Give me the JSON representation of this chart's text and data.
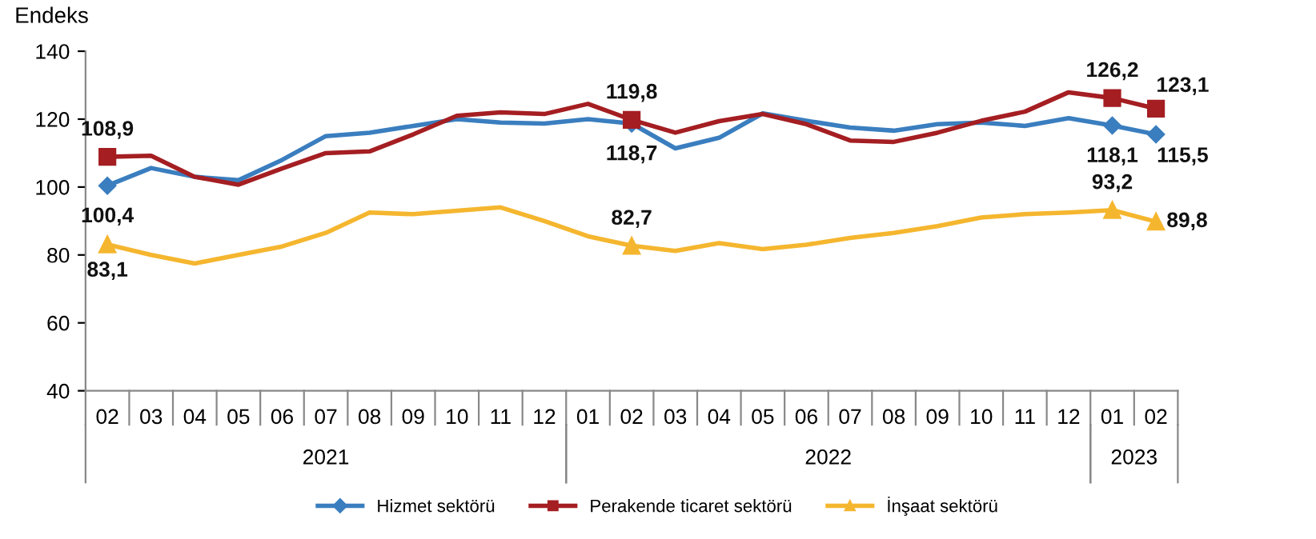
{
  "chart_data": {
    "type": "line",
    "ylabel": "Endeks",
    "categories": [
      "02",
      "03",
      "04",
      "05",
      "06",
      "07",
      "08",
      "09",
      "10",
      "11",
      "12",
      "01",
      "02",
      "03",
      "04",
      "05",
      "06",
      "07",
      "08",
      "09",
      "10",
      "11",
      "12",
      "01",
      "02"
    ],
    "annotations": [
      "2021",
      "2022",
      "2023"
    ],
    "ylim": [
      40,
      140
    ],
    "yticks": [
      40,
      60,
      80,
      100,
      120,
      140
    ],
    "grid": false,
    "legend": "bottom",
    "series": [
      {
        "name": "Hizmet sektörü",
        "color": "#3a7ebf",
        "values": [
          100.4,
          105.6,
          103,
          102,
          108,
          115,
          116,
          118,
          120,
          119,
          118.7,
          120,
          118.7,
          111.4,
          114.5,
          121.7,
          119.5,
          117.5,
          116.6,
          118.5,
          119,
          118,
          120.3,
          118.1,
          115.5
        ],
        "value_labels": [
          "100,4",
          null,
          null,
          null,
          null,
          null,
          null,
          null,
          null,
          null,
          null,
          null,
          "118,7",
          null,
          null,
          null,
          null,
          null,
          null,
          null,
          null,
          null,
          null,
          "118,1",
          "115,5"
        ]
      },
      {
        "name": "Perakende ticaret sektörü",
        "color": "#a41e22",
        "values": [
          108.9,
          109.2,
          103,
          100.7,
          105.5,
          110,
          110.5,
          115.5,
          121,
          122,
          121.5,
          124.5,
          119.8,
          116,
          119.4,
          121.5,
          118.5,
          113.7,
          113.3,
          116,
          119.5,
          122.2,
          127.9,
          126.2,
          123.1
        ],
        "value_labels": [
          "108,9",
          null,
          null,
          null,
          null,
          null,
          null,
          null,
          null,
          null,
          null,
          null,
          "119,8",
          null,
          null,
          null,
          null,
          null,
          null,
          null,
          null,
          null,
          null,
          "126,2",
          "123,1"
        ]
      },
      {
        "name": "İnşaat sektörü",
        "color": "#f5b62f",
        "values": [
          83.1,
          80,
          77.5,
          80,
          82.5,
          86.5,
          92.5,
          92,
          93,
          94,
          90,
          85.5,
          82.7,
          81.2,
          83.5,
          81.7,
          83,
          85,
          86.5,
          88.5,
          91,
          92,
          92.5,
          93.2,
          89.8
        ],
        "value_labels": [
          "83,1",
          null,
          null,
          null,
          null,
          null,
          null,
          null,
          null,
          null,
          null,
          null,
          "82,7",
          null,
          null,
          null,
          null,
          null,
          null,
          null,
          null,
          null,
          null,
          "93,2",
          "89,8"
        ]
      }
    ]
  }
}
